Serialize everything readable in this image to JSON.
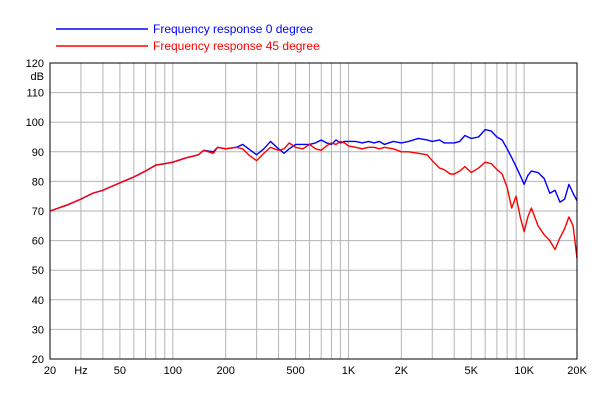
{
  "chart_data": {
    "type": "line",
    "title": "",
    "xlabel": "",
    "ylabel": "dB",
    "x_unit_label": "Hz",
    "x_scale": "log",
    "xlim": [
      20,
      20000
    ],
    "ylim": [
      20,
      120
    ],
    "grid": true,
    "legend_position": "top-left",
    "x_tick_labels": [
      {
        "value": 20,
        "label": "20"
      },
      {
        "value": 50,
        "label": "50"
      },
      {
        "value": 100,
        "label": "100"
      },
      {
        "value": 200,
        "label": "200"
      },
      {
        "value": 500,
        "label": "500"
      },
      {
        "value": 1000,
        "label": "1K"
      },
      {
        "value": 2000,
        "label": "2K"
      },
      {
        "value": 5000,
        "label": "5K"
      },
      {
        "value": 10000,
        "label": "10K"
      },
      {
        "value": 20000,
        "label": "20K"
      }
    ],
    "y_ticks": [
      20,
      30,
      40,
      50,
      60,
      70,
      80,
      90,
      100,
      110,
      120
    ],
    "series": [
      {
        "name": "Frequency response 0 degree",
        "color": "#0000ff",
        "points": [
          [
            20,
            70
          ],
          [
            25,
            72
          ],
          [
            30,
            74
          ],
          [
            35,
            76
          ],
          [
            40,
            77
          ],
          [
            50,
            79.5
          ],
          [
            60,
            81.5
          ],
          [
            70,
            83.5
          ],
          [
            80,
            85.5
          ],
          [
            90,
            86
          ],
          [
            100,
            86.5
          ],
          [
            120,
            88
          ],
          [
            140,
            89
          ],
          [
            150,
            90.5
          ],
          [
            170,
            90
          ],
          [
            180,
            91.5
          ],
          [
            200,
            91
          ],
          [
            230,
            91.5
          ],
          [
            250,
            92.5
          ],
          [
            270,
            91
          ],
          [
            300,
            89
          ],
          [
            330,
            91
          ],
          [
            360,
            93.5
          ],
          [
            400,
            91
          ],
          [
            430,
            89.5
          ],
          [
            460,
            91
          ],
          [
            500,
            92.5
          ],
          [
            550,
            92.5
          ],
          [
            600,
            92.5
          ],
          [
            650,
            93
          ],
          [
            700,
            94
          ],
          [
            750,
            93
          ],
          [
            800,
            92.5
          ],
          [
            850,
            94
          ],
          [
            900,
            93
          ],
          [
            950,
            93.5
          ],
          [
            1000,
            93.5
          ],
          [
            1100,
            93.5
          ],
          [
            1200,
            93
          ],
          [
            1300,
            93.5
          ],
          [
            1400,
            93
          ],
          [
            1500,
            93.5
          ],
          [
            1600,
            92.5
          ],
          [
            1800,
            93.5
          ],
          [
            2000,
            93
          ],
          [
            2200,
            93.5
          ],
          [
            2500,
            94.5
          ],
          [
            2800,
            94
          ],
          [
            3000,
            93.5
          ],
          [
            3300,
            94
          ],
          [
            3500,
            93
          ],
          [
            3800,
            93
          ],
          [
            4000,
            93
          ],
          [
            4300,
            93.5
          ],
          [
            4600,
            95.5
          ],
          [
            5000,
            94.5
          ],
          [
            5500,
            95
          ],
          [
            6000,
            97.5
          ],
          [
            6500,
            97
          ],
          [
            7000,
            95
          ],
          [
            7500,
            94
          ],
          [
            8000,
            91
          ],
          [
            8500,
            88
          ],
          [
            9000,
            85
          ],
          [
            9500,
            82
          ],
          [
            10000,
            79
          ],
          [
            10500,
            82
          ],
          [
            11000,
            83.5
          ],
          [
            12000,
            83
          ],
          [
            13000,
            81
          ],
          [
            14000,
            76
          ],
          [
            15000,
            77
          ],
          [
            16000,
            73
          ],
          [
            17000,
            74
          ],
          [
            18000,
            79
          ],
          [
            19000,
            76
          ],
          [
            20000,
            73.5
          ]
        ]
      },
      {
        "name": "Frequency response 45 degree",
        "color": "#ff0000",
        "points": [
          [
            20,
            70
          ],
          [
            25,
            72
          ],
          [
            30,
            74
          ],
          [
            35,
            76
          ],
          [
            40,
            77
          ],
          [
            50,
            79.5
          ],
          [
            60,
            81.5
          ],
          [
            70,
            83.5
          ],
          [
            80,
            85.5
          ],
          [
            90,
            86
          ],
          [
            100,
            86.5
          ],
          [
            120,
            88
          ],
          [
            140,
            89
          ],
          [
            150,
            90.5
          ],
          [
            170,
            89.5
          ],
          [
            180,
            91.5
          ],
          [
            200,
            91
          ],
          [
            230,
            91.5
          ],
          [
            250,
            91
          ],
          [
            270,
            89
          ],
          [
            300,
            87
          ],
          [
            330,
            89.5
          ],
          [
            360,
            91.5
          ],
          [
            400,
            90.5
          ],
          [
            430,
            91
          ],
          [
            460,
            93
          ],
          [
            500,
            91.5
          ],
          [
            550,
            91
          ],
          [
            600,
            92.5
          ],
          [
            650,
            91
          ],
          [
            700,
            90.5
          ],
          [
            750,
            92
          ],
          [
            800,
            93
          ],
          [
            850,
            92.5
          ],
          [
            900,
            93.5
          ],
          [
            950,
            93
          ],
          [
            1000,
            92
          ],
          [
            1100,
            91.5
          ],
          [
            1200,
            91
          ],
          [
            1300,
            91.5
          ],
          [
            1400,
            91.5
          ],
          [
            1500,
            91
          ],
          [
            1600,
            91.5
          ],
          [
            1800,
            91
          ],
          [
            2000,
            90
          ],
          [
            2200,
            90
          ],
          [
            2500,
            89.5
          ],
          [
            2800,
            89
          ],
          [
            3000,
            87
          ],
          [
            3300,
            84.5
          ],
          [
            3500,
            84
          ],
          [
            3800,
            82.5
          ],
          [
            4000,
            82.5
          ],
          [
            4300,
            83.5
          ],
          [
            4600,
            85
          ],
          [
            5000,
            83
          ],
          [
            5500,
            84.5
          ],
          [
            6000,
            86.5
          ],
          [
            6500,
            86
          ],
          [
            7000,
            84
          ],
          [
            7500,
            82.5
          ],
          [
            8000,
            78
          ],
          [
            8500,
            71
          ],
          [
            9000,
            75
          ],
          [
            9500,
            68
          ],
          [
            10000,
            63
          ],
          [
            10500,
            68
          ],
          [
            11000,
            71
          ],
          [
            12000,
            65
          ],
          [
            13000,
            62
          ],
          [
            14000,
            60
          ],
          [
            15000,
            57
          ],
          [
            16000,
            61
          ],
          [
            17000,
            64
          ],
          [
            18000,
            68
          ],
          [
            19000,
            65
          ],
          [
            20000,
            54
          ]
        ]
      }
    ]
  }
}
